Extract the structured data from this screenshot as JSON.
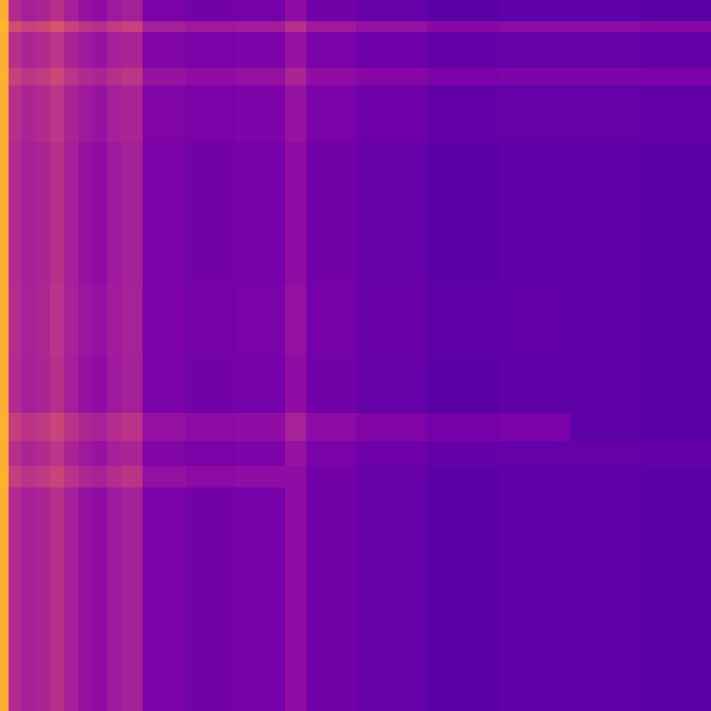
{
  "chart_data": {
    "type": "heatmap",
    "color": "plasma",
    "tick_labels": false,
    "value_range": [
      0,
      1
    ],
    "xlim": [
      0,
      998
    ],
    "ylim": [
      999,
      0
    ],
    "x_edges": [
      0,
      12,
      30,
      50,
      70,
      90,
      110,
      130,
      150,
      170,
      200,
      260,
      330,
      400,
      430,
      500,
      600,
      700,
      800,
      900,
      998
    ],
    "y_edges": [
      0,
      30,
      45,
      95,
      120,
      200,
      300,
      400,
      500,
      580,
      620,
      655,
      685,
      800,
      900,
      999
    ],
    "cells": [
      [
        0.82,
        0.4,
        0.36,
        0.38,
        0.42,
        0.36,
        0.32,
        0.3,
        0.34,
        0.36,
        0.24,
        0.22,
        0.23,
        0.3,
        0.22,
        0.19,
        0.16,
        0.17,
        0.17,
        0.16
      ],
      [
        0.84,
        0.52,
        0.48,
        0.5,
        0.54,
        0.48,
        0.44,
        0.42,
        0.46,
        0.48,
        0.36,
        0.34,
        0.35,
        0.42,
        0.34,
        0.31,
        0.28,
        0.29,
        0.29,
        0.28
      ],
      [
        0.82,
        0.42,
        0.38,
        0.4,
        0.44,
        0.38,
        0.34,
        0.32,
        0.36,
        0.38,
        0.26,
        0.24,
        0.25,
        0.32,
        0.24,
        0.21,
        0.18,
        0.19,
        0.19,
        0.18
      ],
      [
        0.83,
        0.48,
        0.44,
        0.46,
        0.5,
        0.44,
        0.4,
        0.38,
        0.42,
        0.44,
        0.32,
        0.3,
        0.31,
        0.38,
        0.3,
        0.27,
        0.24,
        0.25,
        0.25,
        0.24
      ],
      [
        0.82,
        0.42,
        0.38,
        0.4,
        0.44,
        0.38,
        0.34,
        0.32,
        0.36,
        0.38,
        0.26,
        0.24,
        0.25,
        0.32,
        0.24,
        0.21,
        0.18,
        0.19,
        0.19,
        0.18
      ],
      [
        0.82,
        0.4,
        0.36,
        0.38,
        0.42,
        0.36,
        0.32,
        0.3,
        0.34,
        0.36,
        0.24,
        0.22,
        0.23,
        0.3,
        0.22,
        0.19,
        0.16,
        0.17,
        0.17,
        0.16
      ],
      [
        0.82,
        0.4,
        0.36,
        0.38,
        0.42,
        0.36,
        0.32,
        0.3,
        0.34,
        0.36,
        0.24,
        0.22,
        0.23,
        0.3,
        0.22,
        0.19,
        0.16,
        0.17,
        0.17,
        0.16
      ],
      [
        0.82,
        0.41,
        0.37,
        0.39,
        0.43,
        0.37,
        0.33,
        0.31,
        0.35,
        0.37,
        0.25,
        0.23,
        0.24,
        0.31,
        0.23,
        0.2,
        0.17,
        0.18,
        0.17,
        0.16
      ],
      [
        0.82,
        0.4,
        0.36,
        0.38,
        0.42,
        0.36,
        0.32,
        0.3,
        0.34,
        0.36,
        0.24,
        0.22,
        0.23,
        0.3,
        0.22,
        0.19,
        0.16,
        0.17,
        0.17,
        0.16
      ],
      [
        0.83,
        0.47,
        0.43,
        0.45,
        0.49,
        0.43,
        0.39,
        0.37,
        0.41,
        0.43,
        0.31,
        0.29,
        0.3,
        0.37,
        0.29,
        0.26,
        0.23,
        0.24,
        0.17,
        0.16
      ],
      [
        0.82,
        0.42,
        0.38,
        0.4,
        0.44,
        0.38,
        0.34,
        0.32,
        0.36,
        0.38,
        0.26,
        0.24,
        0.25,
        0.32,
        0.24,
        0.21,
        0.18,
        0.19,
        0.19,
        0.18
      ],
      [
        0.83,
        0.47,
        0.43,
        0.45,
        0.49,
        0.43,
        0.39,
        0.37,
        0.41,
        0.43,
        0.31,
        0.29,
        0.3,
        0.3,
        0.22,
        0.19,
        0.16,
        0.17,
        0.17,
        0.16
      ],
      [
        0.82,
        0.4,
        0.36,
        0.38,
        0.42,
        0.36,
        0.32,
        0.3,
        0.34,
        0.36,
        0.24,
        0.22,
        0.23,
        0.3,
        0.22,
        0.19,
        0.16,
        0.17,
        0.17,
        0.16
      ],
      [
        0.82,
        0.4,
        0.36,
        0.38,
        0.42,
        0.36,
        0.32,
        0.3,
        0.34,
        0.36,
        0.24,
        0.22,
        0.23,
        0.3,
        0.22,
        0.19,
        0.16,
        0.17,
        0.17,
        0.16
      ],
      [
        0.82,
        0.4,
        0.36,
        0.38,
        0.42,
        0.36,
        0.32,
        0.3,
        0.34,
        0.36,
        0.24,
        0.22,
        0.23,
        0.3,
        0.22,
        0.19,
        0.16,
        0.17,
        0.17,
        0.16
      ]
    ]
  }
}
